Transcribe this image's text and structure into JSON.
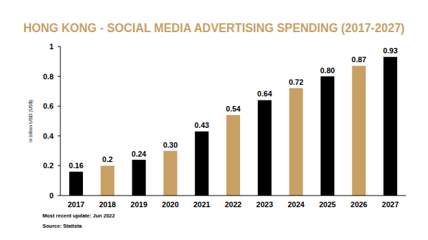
{
  "chart_data": {
    "type": "bar",
    "title": "HONG KONG - SOCIAL MEDIA ADVERTISING SPENDING (2017-2027)",
    "y_label": "in billion USD (US$)",
    "categories": [
      "2017",
      "2018",
      "2019",
      "2020",
      "2021",
      "2022",
      "2023",
      "2024",
      "2025",
      "2026",
      "2027"
    ],
    "values": [
      0.16,
      0.2,
      0.24,
      0.3,
      0.43,
      0.54,
      0.64,
      0.72,
      0.8,
      0.87,
      0.93
    ],
    "value_labels": [
      "0.16",
      "0.2",
      "0.24",
      "0.30",
      "0.43",
      "0.54",
      "0.64",
      "0.72",
      "0.80",
      "0.87",
      "0.93"
    ],
    "colors": [
      "#000000",
      "#c9a063",
      "#000000",
      "#c9a063",
      "#000000",
      "#c9a063",
      "#000000",
      "#c9a063",
      "#000000",
      "#c9a063",
      "#000000"
    ],
    "ylim": [
      0,
      1
    ],
    "yticks": [
      0,
      0.2,
      0.4,
      0.6,
      0.8,
      1
    ],
    "grid": false,
    "data_labels": true,
    "annotations": [
      "Most recent update: Jun 2022",
      "Source: Statista"
    ]
  }
}
